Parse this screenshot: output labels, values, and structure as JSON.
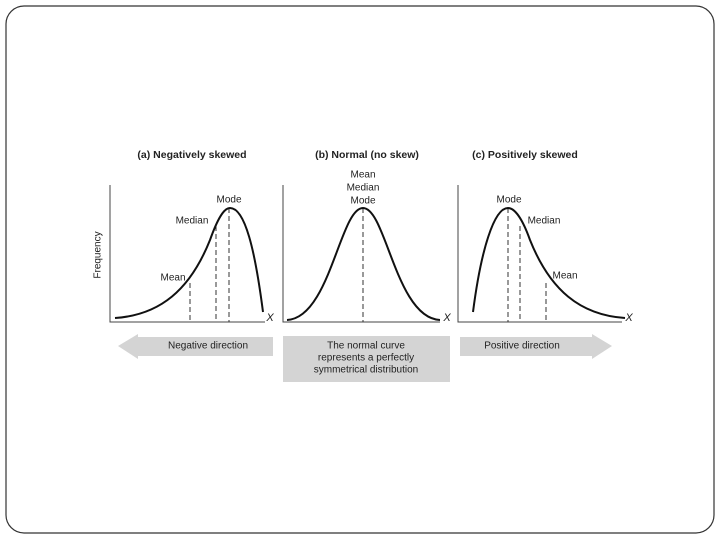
{
  "y_label": "Frequency",
  "panels": [
    {
      "title": "(a) Negatively skewed",
      "mode": "Mode",
      "median": "Median",
      "mean": "Mean",
      "x_label": "X"
    },
    {
      "title": "(b) Normal (no skew)",
      "center_labels": [
        "Mean",
        "Median",
        "Mode"
      ],
      "x_label": "X"
    },
    {
      "title": "(c) Positively skewed",
      "mode": "Mode",
      "median": "Median",
      "mean": "Mean",
      "x_label": "X"
    }
  ],
  "arrows": {
    "left": "Negative direction",
    "center": [
      "The normal curve",
      "represents a perfectly",
      "symmetrical distribution"
    ],
    "right": "Positive direction"
  }
}
